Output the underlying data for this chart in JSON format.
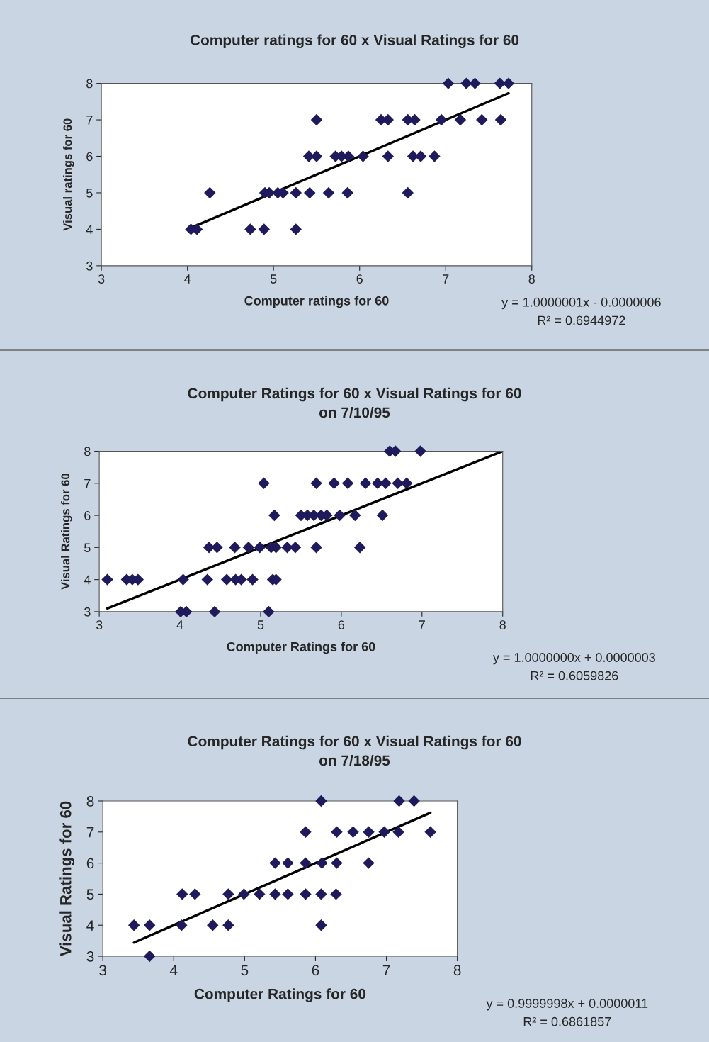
{
  "chart_data": [
    {
      "type": "scatter",
      "title": "Computer ratings for 60 x Visual Ratings for 60",
      "xlabel": "Computer ratings for 60",
      "ylabel": "Visual ratings for 60",
      "xlim": [
        3,
        8
      ],
      "ylim": [
        3,
        8
      ],
      "xticks": [
        3,
        4,
        5,
        6,
        7,
        8
      ],
      "yticks": [
        3,
        4,
        5,
        6,
        7,
        8
      ],
      "grid": false,
      "annotations": [
        "y = 1.0000001x - 0.0000006",
        "R² = 0.6944972"
      ],
      "series": [
        {
          "marker": "diamond",
          "color": "#1f1a5c",
          "x": [
            7.03,
            7.24,
            7.34,
            7.63,
            7.73,
            5.5,
            6.25,
            6.33,
            6.56,
            6.64,
            6.95,
            7.17,
            7.42,
            7.64,
            5.41,
            5.5,
            5.72,
            5.79,
            5.87,
            6.04,
            6.33,
            6.62,
            6.71,
            6.87,
            4.26,
            4.9,
            4.95,
            5.05,
            5.11,
            5.26,
            5.42,
            5.64,
            5.86,
            6.56,
            4.04,
            4.11,
            4.73,
            4.89,
            5.26
          ],
          "values": [
            8,
            8,
            8,
            8,
            8,
            7,
            7,
            7,
            7,
            7,
            7,
            7,
            7,
            7,
            6,
            6,
            6,
            6,
            6,
            6,
            6,
            6,
            6,
            6,
            5,
            5,
            5,
            5,
            5,
            5,
            5,
            5,
            5,
            5,
            4,
            4,
            4,
            4,
            4
          ]
        },
        {
          "type": "line",
          "color": "#000000",
          "x": [
            4.04,
            7.73
          ],
          "values": [
            4.04,
            7.73
          ]
        }
      ]
    },
    {
      "type": "scatter",
      "title": "Computer Ratings for 60 x Visual Ratings for 60\non 7/10/95",
      "xlabel": "Computer Ratings for 60",
      "ylabel": "Visual Ratings for 60",
      "xlim": [
        3,
        8
      ],
      "ylim": [
        3,
        8
      ],
      "xticks": [
        3,
        4,
        5,
        6,
        7,
        8
      ],
      "yticks": [
        3,
        4,
        5,
        6,
        7,
        8
      ],
      "grid": false,
      "annotations": [
        "y = 1.0000000x + 0.0000003",
        "R² = 0.6059826"
      ],
      "series": [
        {
          "marker": "diamond",
          "color": "#1f1a5c",
          "x": [
            6.6,
            6.67,
            6.98,
            5.04,
            5.69,
            5.91,
            6.08,
            6.3,
            6.45,
            6.55,
            6.7,
            6.81,
            5.17,
            5.5,
            5.58,
            5.66,
            5.75,
            5.82,
            5.98,
            6.17,
            6.51,
            4.36,
            4.46,
            4.68,
            4.85,
            4.99,
            5.13,
            5.19,
            5.33,
            5.43,
            5.69,
            6.23,
            3.1,
            3.34,
            3.41,
            3.48,
            4.04,
            4.34,
            4.58,
            4.69,
            4.76,
            4.9,
            5.15,
            5.19,
            4.01,
            4.08,
            4.43,
            5.1
          ],
          "values": [
            8,
            8,
            8,
            7,
            7,
            7,
            7,
            7,
            7,
            7,
            7,
            7,
            6,
            6,
            6,
            6,
            6,
            6,
            6,
            6,
            6,
            5,
            5,
            5,
            5,
            5,
            5,
            5,
            5,
            5,
            5,
            5,
            4,
            4,
            4,
            4,
            4,
            4,
            4,
            4,
            4,
            4,
            4,
            4,
            3,
            3,
            3,
            3
          ]
        },
        {
          "type": "line",
          "color": "#000000",
          "x": [
            3.1,
            8.0
          ],
          "values": [
            3.1,
            8.0
          ]
        }
      ]
    },
    {
      "type": "scatter",
      "title": "Computer Ratings for 60 x Visual Ratings for 60\non 7/18/95",
      "xlabel": "Computer Ratings for 60",
      "ylabel": "Visual Ratings for 60",
      "xlim": [
        3,
        8
      ],
      "ylim": [
        3,
        8
      ],
      "xticks": [
        3,
        4,
        5,
        6,
        7,
        8
      ],
      "yticks": [
        3,
        4,
        5,
        6,
        7,
        8
      ],
      "grid": false,
      "annotations": [
        "y = 0.9999998x + 0.0000011",
        "R² = 0.6861857"
      ],
      "series": [
        {
          "marker": "diamond",
          "color": "#1f1a5c",
          "x": [
            6.08,
            7.18,
            7.39,
            5.86,
            6.3,
            6.53,
            6.75,
            6.97,
            7.17,
            7.62,
            5.43,
            5.61,
            5.86,
            6.09,
            6.3,
            6.75,
            4.12,
            4.3,
            4.77,
            4.99,
            5.21,
            5.43,
            5.61,
            5.86,
            6.08,
            6.29,
            3.44,
            3.66,
            4.11,
            4.55,
            4.77,
            6.08,
            3.66
          ],
          "values": [
            8,
            8,
            8,
            7,
            7,
            7,
            7,
            7,
            7,
            7,
            6,
            6,
            6,
            6,
            6,
            6,
            5,
            5,
            5,
            5,
            5,
            5,
            5,
            5,
            5,
            5,
            4,
            4,
            4,
            4,
            4,
            4,
            3
          ]
        },
        {
          "type": "line",
          "color": "#000000",
          "x": [
            3.44,
            7.62
          ],
          "values": [
            3.44,
            7.62
          ]
        }
      ]
    }
  ]
}
